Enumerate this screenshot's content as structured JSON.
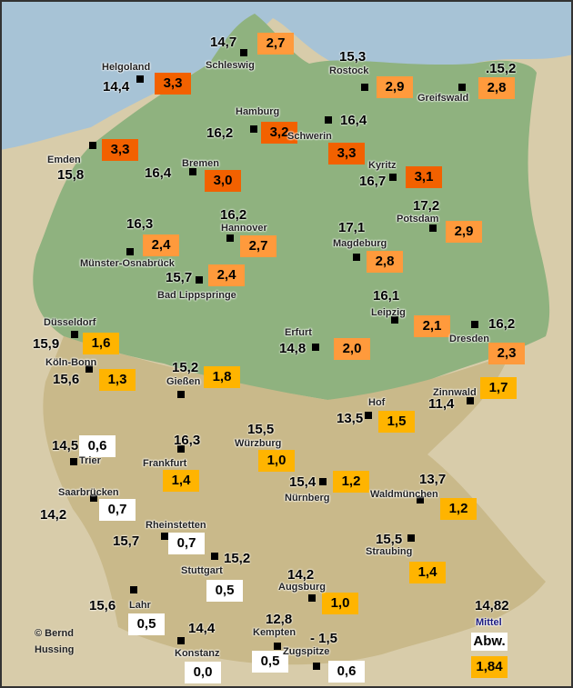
{
  "stations": [
    {
      "name": "Schleswig",
      "temperature": "14,7",
      "anomaly": "2,7",
      "color": "#ff9a3c"
    },
    {
      "name": "Helgoland",
      "temperature": "14,4",
      "anomaly": "3,3",
      "color": "#f26100"
    },
    {
      "name": "Rostock",
      "temperature": "15,3",
      "anomaly": "2,9",
      "color": "#ff9a3c"
    },
    {
      "name": "Greifswald",
      "temperature": ".15,2",
      "anomaly": "2,8",
      "color": "#ff9a3c"
    },
    {
      "name": "Hamburg",
      "temperature": "16,2",
      "anomaly": "3,2",
      "color": "#f26100"
    },
    {
      "name": "Schwerin",
      "temperature": "16,4",
      "anomaly": "3,3",
      "color": "#f26100"
    },
    {
      "name": "Emden",
      "temperature": "15,8",
      "anomaly": "3,3",
      "color": "#f26100"
    },
    {
      "name": "Bremen",
      "temperature": "16,4",
      "anomaly": "3,0",
      "color": "#f26100"
    },
    {
      "name": "Kyritz",
      "temperature": "16,7",
      "anomaly": "3,1",
      "color": "#f26100"
    },
    {
      "name": "Potsdam",
      "temperature": "17,2",
      "anomaly": "2,9",
      "color": "#ff9a3c"
    },
    {
      "name": "Hannover",
      "temperature": "16,2",
      "anomaly": "2,7",
      "color": "#ff9a3c"
    },
    {
      "name": "Münster-Osnabrück",
      "temperature": "16,3",
      "anomaly": "2,4",
      "color": "#ff9a3c"
    },
    {
      "name": "Magdeburg",
      "temperature": "17,1",
      "anomaly": "2,8",
      "color": "#ff9a3c"
    },
    {
      "name": "Bad Lippspringe",
      "temperature": "15,7",
      "anomaly": "2,4",
      "color": "#ff9a3c"
    },
    {
      "name": "Leipzig",
      "temperature": "16,1",
      "anomaly": "2,1",
      "color": "#ff9a3c"
    },
    {
      "name": "Dresden",
      "temperature": "16,2",
      "anomaly": "2,3",
      "color": "#ff9a3c"
    },
    {
      "name": "Düsseldorf",
      "temperature": "15,9",
      "anomaly": "1,6",
      "color": "#ffb400"
    },
    {
      "name": "Erfurt",
      "temperature": "14,8",
      "anomaly": "2,0",
      "color": "#ff9a3c"
    },
    {
      "name": "Köln-Bonn",
      "temperature": "15,6",
      "anomaly": "1,3",
      "color": "#ffb400"
    },
    {
      "name": "Gießen",
      "temperature": "15,2",
      "anomaly": "1,8",
      "color": "#ffb400"
    },
    {
      "name": "Zinnwald",
      "temperature": "11,4",
      "anomaly": "1,7",
      "color": "#ffb400"
    },
    {
      "name": "Hof",
      "temperature": "13,5",
      "anomaly": "1,5",
      "color": "#ffb400"
    },
    {
      "name": "Trier",
      "temperature": "14,5",
      "anomaly": "0,6",
      "color": "#ffffff"
    },
    {
      "name": "Würzburg",
      "temperature": "15,5",
      "anomaly": "1,0",
      "color": "#ffb400"
    },
    {
      "name": "Frankfurt",
      "temperature": "16,3",
      "anomaly": "1,4",
      "color": "#ffb400"
    },
    {
      "name": "Nürnberg",
      "temperature": "15,4",
      "anomaly": "1,2",
      "color": "#ffb400"
    },
    {
      "name": "Waldmünchen",
      "temperature": "13,7",
      "anomaly": "1,2",
      "color": "#ffb400"
    },
    {
      "name": "Saarbrücken",
      "temperature": "14,2",
      "anomaly": "0,7",
      "color": "#ffffff"
    },
    {
      "name": "Rheinstetten",
      "temperature": "15,7",
      "anomaly": "0,7",
      "color": "#ffffff"
    },
    {
      "name": "Stuttgart",
      "temperature": "15,2",
      "anomaly": "0,5",
      "color": "#ffffff"
    },
    {
      "name": "Straubing",
      "temperature": "15,5",
      "anomaly": "1,4",
      "color": "#ffb400"
    },
    {
      "name": "Augsburg",
      "temperature": "14,2",
      "anomaly": "1,0",
      "color": "#ffb400"
    },
    {
      "name": "Lahr",
      "temperature": "15,6",
      "anomaly": "0,5",
      "color": "#ffffff"
    },
    {
      "name": "Kempten",
      "temperature": "12,8",
      "anomaly": "0,5",
      "color": "#ffffff"
    },
    {
      "name": "Zugspitze",
      "temperature": "- 1,5",
      "anomaly": "0,6",
      "color": "#ffffff"
    },
    {
      "name": "Konstanz",
      "temperature": "14,4",
      "anomaly": "0,0",
      "color": "#ffffff"
    }
  ],
  "mean": {
    "temperature": "14,82",
    "label": "Mittel",
    "anomaly_label": "Abw.",
    "anomaly": "1,84",
    "color": "#ffb400"
  },
  "copyright": [
    "© Bernd",
    "Hussing"
  ]
}
